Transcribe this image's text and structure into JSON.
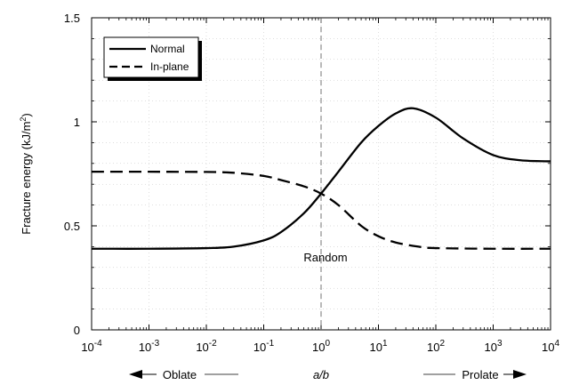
{
  "chart_data": {
    "type": "line",
    "xscale": "log",
    "xlim": [
      0.0001,
      10000
    ],
    "ylim": [
      0,
      1.5
    ],
    "ylabel": "Fracture energy (kJ/m",
    "ylabel_sup": "2",
    "ylabel_close": ")",
    "xlabel": "a/b",
    "x_ticks": [
      {
        "base": "10",
        "exp": "-4",
        "value": 0.0001
      },
      {
        "base": "10",
        "exp": "-3",
        "value": 0.001
      },
      {
        "base": "10",
        "exp": "-2",
        "value": 0.01
      },
      {
        "base": "10",
        "exp": "-1",
        "value": 0.1
      },
      {
        "base": "10",
        "exp": "0",
        "value": 1
      },
      {
        "base": "10",
        "exp": "1",
        "value": 10
      },
      {
        "base": "10",
        "exp": "2",
        "value": 100
      },
      {
        "base": "10",
        "exp": "3",
        "value": 1000
      },
      {
        "base": "10",
        "exp": "4",
        "value": 10000
      }
    ],
    "y_ticks": [
      {
        "label": "0",
        "value": 0
      },
      {
        "label": "0.5",
        "value": 0.5
      },
      {
        "label": "1",
        "value": 1
      },
      {
        "label": "1.5",
        "value": 1.5
      }
    ],
    "annotations": {
      "random_label": "Random",
      "random_x": 1,
      "oblate_label": "Oblate",
      "prolate_label": "Prolate"
    },
    "legend_position": "top-left",
    "series": [
      {
        "name": "Normal",
        "style": "solid",
        "x": [
          0.0001,
          0.001,
          0.01,
          0.03,
          0.1,
          0.2,
          0.5,
          1,
          2,
          5,
          10,
          20,
          40,
          100,
          300,
          1000,
          3000,
          10000
        ],
        "y": [
          0.39,
          0.39,
          0.393,
          0.4,
          0.43,
          0.47,
          0.56,
          0.655,
          0.76,
          0.9,
          0.98,
          1.04,
          1.065,
          1.02,
          0.92,
          0.84,
          0.815,
          0.81
        ]
      },
      {
        "name": "In-plane",
        "style": "dashed",
        "x": [
          0.0001,
          0.001,
          0.01,
          0.03,
          0.1,
          0.2,
          0.5,
          1,
          2,
          5,
          10,
          20,
          50,
          100,
          1000,
          10000
        ],
        "y": [
          0.76,
          0.76,
          0.759,
          0.755,
          0.74,
          0.72,
          0.69,
          0.655,
          0.6,
          0.5,
          0.45,
          0.42,
          0.4,
          0.393,
          0.39,
          0.39
        ]
      }
    ]
  }
}
